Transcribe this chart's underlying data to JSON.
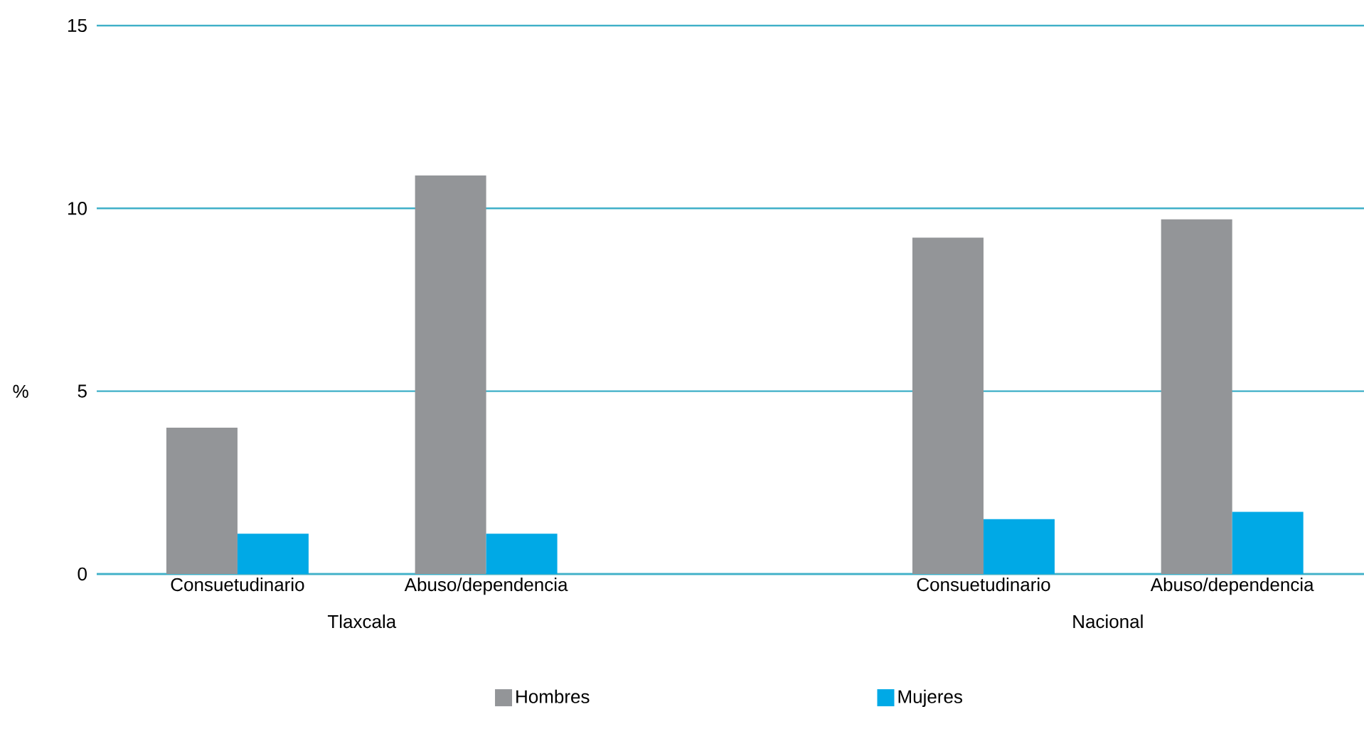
{
  "chart_data": {
    "type": "bar",
    "categories": [
      "Consuetudinario",
      "Abuso/dependencia",
      null,
      "Consuetudinario",
      "Abuso/dependencia"
    ],
    "series": [
      {
        "name": "Hombres",
        "color": "#939598",
        "values": [
          4.0,
          10.9,
          null,
          9.2,
          9.7
        ]
      },
      {
        "name": "Mujeres",
        "color": "#00a9e6",
        "values": [
          1.1,
          1.1,
          null,
          1.5,
          1.7
        ]
      }
    ],
    "annotations": [
      "Tlaxcala",
      "Nacional"
    ],
    "ylabel": "%",
    "ylim": [
      0,
      15
    ],
    "yticks": [
      0,
      5,
      10,
      15
    ],
    "grid": "y",
    "legend": "bottom"
  }
}
